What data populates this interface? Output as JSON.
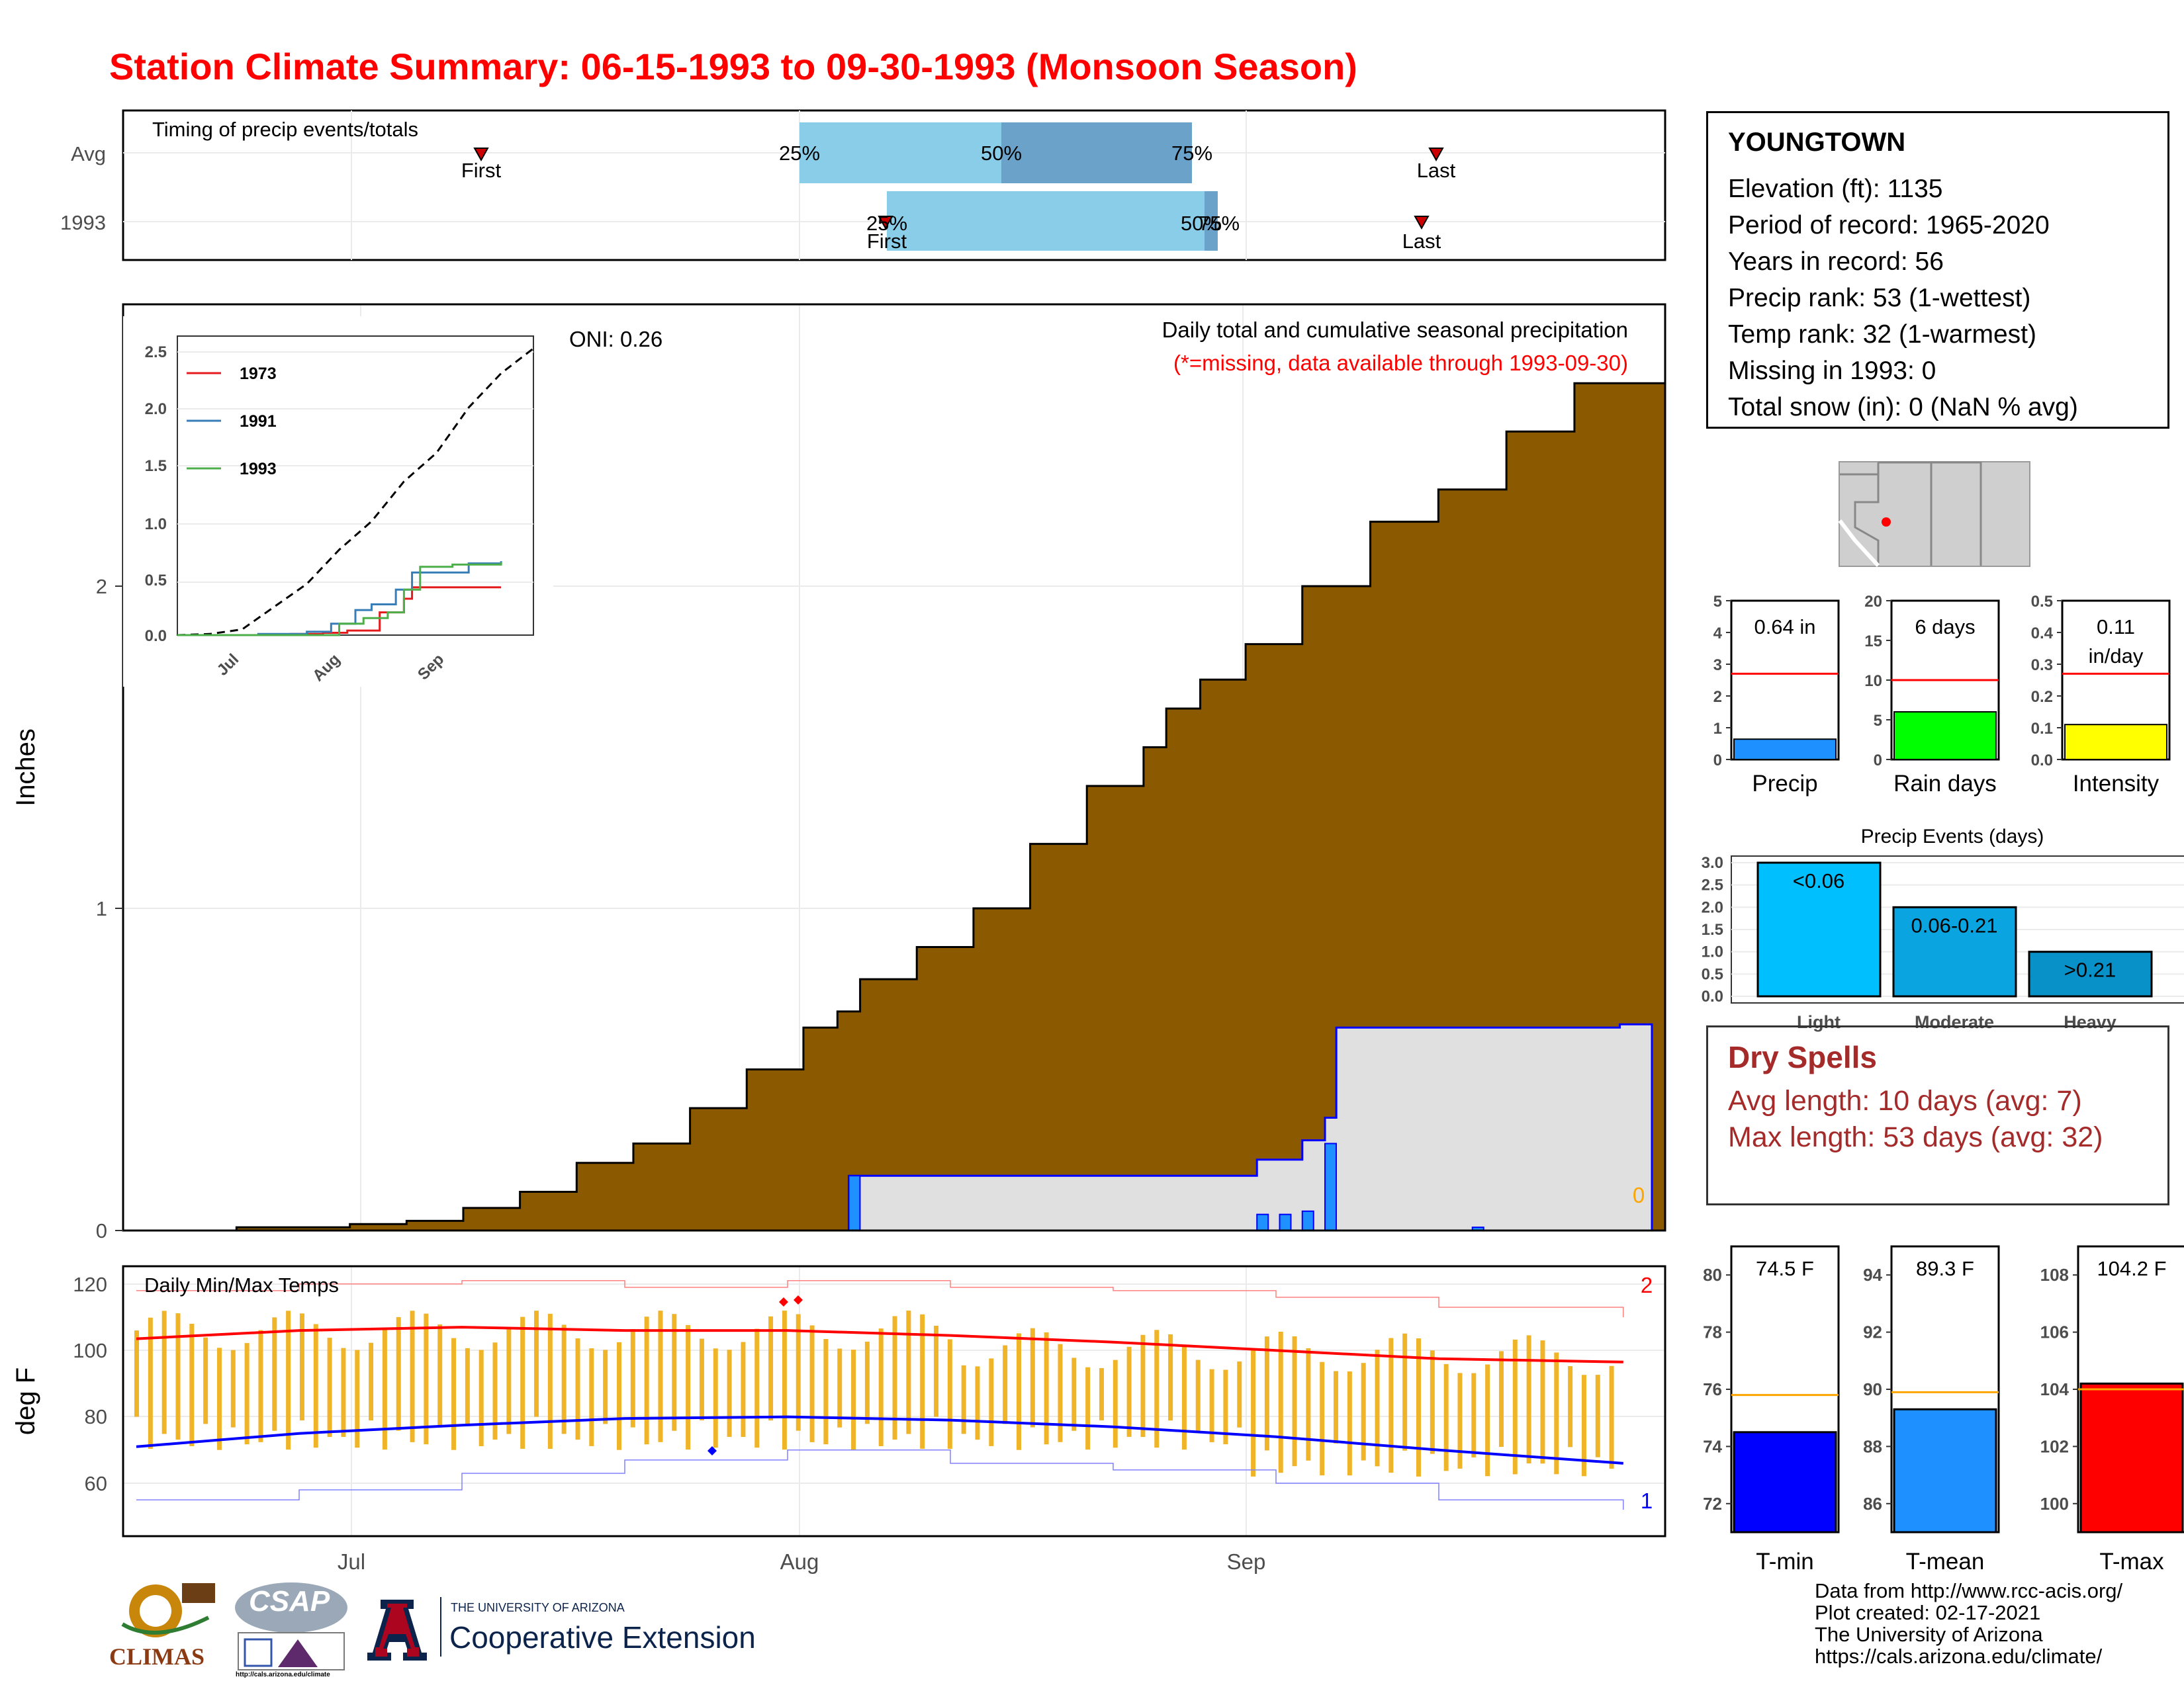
{
  "title": "Station Climate Summary: 06-15-1993 to 09-30-1993 (Monsoon Season)",
  "timing": {
    "title": "Timing of precip events/totals",
    "rows": [
      {
        "label": "Avg",
        "first": "First",
        "last": "Last",
        "p25": "25%",
        "p50": "50%",
        "p75": "75%"
      },
      {
        "label": "1993",
        "first": "First",
        "last": "Last",
        "p25": "25%",
        "p50": "50%",
        "p75": "75%"
      }
    ]
  },
  "main": {
    "ylabel": "Inches",
    "y_ticks": [
      "0",
      "1",
      "2"
    ],
    "x_ticks": [
      "Jul",
      "Aug",
      "Sep"
    ],
    "oni": "ONI: 0.26",
    "note1": "Daily total and cumulative seasonal precipitation",
    "note2": "(*=missing, data available through 1993-09-30)",
    "zero_label": "0"
  },
  "inset": {
    "y_ticks": [
      "0.0",
      "0.5",
      "1.0",
      "1.5",
      "2.0",
      "2.5"
    ],
    "x_ticks": [
      "Jul",
      "Aug",
      "Sep"
    ],
    "legend": [
      {
        "name": "1973",
        "color": "#e41a1c"
      },
      {
        "name": "1991",
        "color": "#377eb8"
      },
      {
        "name": "1993",
        "color": "#4daf4a"
      }
    ]
  },
  "temps": {
    "title": "Daily Min/Max Temps",
    "ylabel": "deg F",
    "y_ticks": [
      "60",
      "80",
      "100",
      "120"
    ],
    "x_ticks": [
      "Jul",
      "Aug",
      "Sep"
    ],
    "record_high_count": "2",
    "record_low_count": "1"
  },
  "station": {
    "name": "YOUNGTOWN",
    "lines": [
      "Elevation (ft): 1135",
      "Period of record: 1965-2020",
      "Years in record: 56",
      "Precip rank: 53 (1-wettest)",
      "Temp rank: 32 (1-warmest)",
      "Missing in 1993: 0",
      "Total snow (in): 0 (NaN % avg)"
    ]
  },
  "mini_bars": [
    {
      "label": "Precip",
      "value_text": "0.64 in",
      "ticks": [
        "0",
        "1",
        "2",
        "3",
        "4",
        "5"
      ],
      "max": 5,
      "value": 0.64,
      "avg": 2.7,
      "color": "#1e90ff"
    },
    {
      "label": "Rain days",
      "value_text": "6 days",
      "ticks": [
        "0",
        "5",
        "10",
        "15",
        "20"
      ],
      "max": 20,
      "value": 6,
      "avg": 10,
      "color": "#00ff00"
    },
    {
      "label": "Intensity",
      "value_text": "0.11",
      "value_text2": "in/day",
      "ticks": [
        "0.0",
        "0.1",
        "0.2",
        "0.3",
        "0.4",
        "0.5"
      ],
      "max": 0.5,
      "value": 0.11,
      "avg": 0.27,
      "color": "#ffff00"
    }
  ],
  "events": {
    "title": "Precip Events (days)",
    "ticks": [
      "0.0",
      "0.5",
      "1.0",
      "1.5",
      "2.0",
      "2.5",
      "3.0"
    ],
    "bars": [
      {
        "category": "Light",
        "range": "<0.06",
        "value": 3,
        "color": "#00bfff"
      },
      {
        "category": "Moderate",
        "range": "0.06-0.21",
        "value": 2,
        "color": "#0aa5e0"
      },
      {
        "category": "Heavy",
        "range": ">0.21",
        "value": 1,
        "color": "#0890c8"
      }
    ]
  },
  "dry_spells": {
    "title": "Dry Spells",
    "avg": "Avg length: 10 days (avg: 7)",
    "max": "Max length: 53 days (avg: 32)"
  },
  "temp_bars": [
    {
      "label": "T-min",
      "value_text": "74.5 F",
      "ticks": [
        "72",
        "74",
        "76",
        "78",
        "80"
      ],
      "min": 71,
      "max": 81,
      "value": 74.5,
      "avg": 75.8,
      "color": "#0000ff"
    },
    {
      "label": "T-mean",
      "value_text": "89.3 F",
      "ticks": [
        "86",
        "88",
        "90",
        "92",
        "94"
      ],
      "min": 85,
      "max": 95,
      "value": 89.3,
      "avg": 89.9,
      "color": "#1e90ff"
    },
    {
      "label": "T-max",
      "value_text": "104.2 F",
      "ticks": [
        "100",
        "102",
        "104",
        "106",
        "108"
      ],
      "min": 99,
      "max": 109,
      "value": 104.2,
      "avg": 104.0,
      "color": "#ff0000"
    }
  ],
  "credits": [
    "Data from http://www.rcc-acis.org/",
    "Plot created: 02-17-2021",
    "The University of Arizona",
    "https://cals.arizona.edu/climate/"
  ],
  "logos": {
    "climas": "CLIMAS",
    "csap": "CSAP",
    "csap_url": "http://cals.arizona.edu/climate",
    "ua_small": "THE UNIVERSITY OF ARIZONA",
    "ua_big": "Cooperative Extension"
  },
  "chart_data": [
    {
      "type": "line",
      "title": "Daily total and cumulative seasonal precipitation",
      "ylabel": "Inches",
      "x_range": [
        "1993-06-15",
        "1993-09-30"
      ],
      "ylim": [
        0,
        2.8
      ],
      "series": [],
      "avg_cumulative": [
        [
          0,
          0
        ],
        [
          10,
          0.01
        ],
        [
          20,
          0.02
        ],
        [
          25,
          0.03
        ],
        [
          30,
          0.07
        ],
        [
          35,
          0.12
        ],
        [
          40,
          0.21
        ],
        [
          45,
          0.27
        ],
        [
          50,
          0.38
        ],
        [
          55,
          0.5
        ],
        [
          60,
          0.63
        ],
        [
          63,
          0.68
        ],
        [
          65,
          0.78
        ],
        [
          70,
          0.88
        ],
        [
          75,
          1.0
        ],
        [
          80,
          1.2
        ],
        [
          85,
          1.38
        ],
        [
          90,
          1.5
        ],
        [
          92,
          1.62
        ],
        [
          95,
          1.71
        ],
        [
          99,
          1.82
        ],
        [
          104,
          2.0
        ],
        [
          110,
          2.2
        ],
        [
          116,
          2.3
        ],
        [
          122,
          2.48
        ],
        [
          128,
          2.63
        ]
      ],
      "obs_cumulative": [
        [
          0,
          0
        ],
        [
          64,
          0
        ],
        [
          64,
          0.17
        ],
        [
          100,
          0.17
        ],
        [
          100,
          0.22
        ],
        [
          104,
          0.28
        ],
        [
          106,
          0.35
        ],
        [
          107,
          0.63
        ],
        [
          132,
          0.64
        ]
      ],
      "daily_precip": [
        [
          64,
          0.17
        ],
        [
          100,
          0.05
        ],
        [
          102,
          0.05
        ],
        [
          104,
          0.06
        ],
        [
          106,
          0.27
        ],
        [
          119,
          0.01
        ]
      ]
    },
    {
      "type": "line",
      "x_ticks": [
        "Jul",
        "Aug",
        "Sep"
      ],
      "ylim": [
        0,
        2.6
      ],
      "series": [
        {
          "name": "1973",
          "values": [
            [
              0,
              0
            ],
            [
              8,
              0
            ],
            [
              14,
              0.01
            ],
            [
              18,
              0.02
            ],
            [
              21,
              0.04
            ],
            [
              25,
              0.2
            ],
            [
              28,
              0.32
            ],
            [
              29,
              0.42
            ],
            [
              40,
              0.42
            ]
          ]
        },
        {
          "name": "1991",
          "values": [
            [
              0,
              0
            ],
            [
              10,
              0.01
            ],
            [
              16,
              0.03
            ],
            [
              19,
              0.1
            ],
            [
              22,
              0.22
            ],
            [
              24,
              0.27
            ],
            [
              27,
              0.4
            ],
            [
              29,
              0.55
            ],
            [
              36,
              0.63
            ],
            [
              40,
              0.65
            ]
          ]
        },
        {
          "name": "1993",
          "values": [
            [
              0,
              0
            ],
            [
              18,
              0
            ],
            [
              20,
              0.1
            ],
            [
              23,
              0.15
            ],
            [
              26,
              0.2
            ],
            [
              28,
              0.4
            ],
            [
              30,
              0.6
            ],
            [
              34,
              0.62
            ],
            [
              40,
              0.64
            ]
          ]
        }
      ],
      "average_dashed": [
        [
          0,
          0
        ],
        [
          4,
          0.01
        ],
        [
          8,
          0.05
        ],
        [
          12,
          0.25
        ],
        [
          16,
          0.45
        ],
        [
          20,
          0.75
        ],
        [
          24,
          1.0
        ],
        [
          28,
          1.35
        ],
        [
          32,
          1.6
        ],
        [
          36,
          2.0
        ],
        [
          40,
          2.3
        ],
        [
          44,
          2.52
        ]
      ]
    },
    {
      "type": "bar",
      "title": "Daily Min/Max Temps",
      "ylabel": "deg F",
      "ylim": [
        50,
        125
      ],
      "avg_max": [
        [
          0,
          103.5
        ],
        [
          15,
          106
        ],
        [
          30,
          107
        ],
        [
          45,
          106
        ],
        [
          60,
          106
        ],
        [
          75,
          104.5
        ],
        [
          90,
          102.5
        ],
        [
          105,
          100
        ],
        [
          120,
          97.5
        ],
        [
          137,
          96.5
        ]
      ],
      "avg_min": [
        [
          0,
          71
        ],
        [
          15,
          75
        ],
        [
          30,
          77.5
        ],
        [
          45,
          79.5
        ],
        [
          60,
          80
        ],
        [
          75,
          79
        ],
        [
          90,
          77
        ],
        [
          105,
          74
        ],
        [
          120,
          70
        ],
        [
          137,
          66
        ]
      ],
      "record_high": [
        [
          0,
          118
        ],
        [
          15,
          120
        ],
        [
          30,
          121
        ],
        [
          45,
          119
        ],
        [
          60,
          121
        ],
        [
          75,
          119
        ],
        [
          90,
          118
        ],
        [
          105,
          116
        ],
        [
          120,
          113
        ],
        [
          137,
          110
        ]
      ],
      "record_low": [
        [
          0,
          55
        ],
        [
          15,
          58
        ],
        [
          30,
          63
        ],
        [
          45,
          67
        ],
        [
          60,
          70
        ],
        [
          75,
          66
        ],
        [
          90,
          64
        ],
        [
          105,
          60
        ],
        [
          120,
          55
        ],
        [
          137,
          52
        ]
      ]
    },
    {
      "type": "bar",
      "categories": [
        "Precip"
      ],
      "values": [
        0.64
      ],
      "avg": 2.7
    },
    {
      "type": "bar",
      "categories": [
        "Rain days"
      ],
      "values": [
        6
      ],
      "avg": 10
    },
    {
      "type": "bar",
      "categories": [
        "Intensity"
      ],
      "values": [
        0.11
      ],
      "avg": 0.27
    },
    {
      "type": "bar",
      "title": "Precip Events (days)",
      "categories": [
        "Light",
        "Moderate",
        "Heavy"
      ],
      "values": [
        3,
        2,
        1
      ]
    },
    {
      "type": "bar",
      "categories": [
        "T-min",
        "T-mean",
        "T-max"
      ],
      "values": [
        74.5,
        89.3,
        104.2
      ],
      "avg": [
        75.8,
        89.9,
        104.0
      ]
    }
  ]
}
